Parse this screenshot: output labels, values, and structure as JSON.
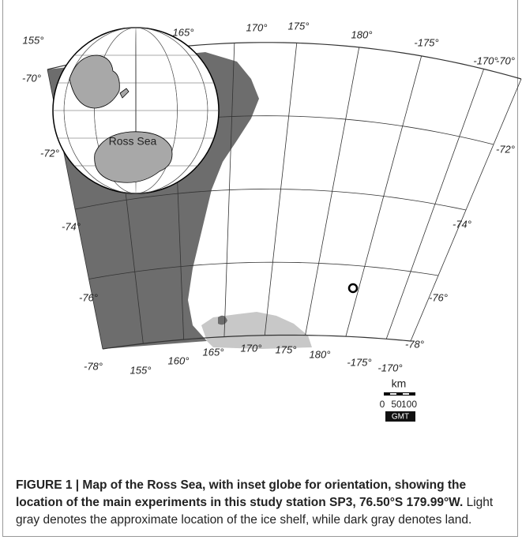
{
  "map": {
    "latitude_labels_left": [
      "-70°",
      "-72°",
      "-74°",
      "-76°",
      "-78°"
    ],
    "latitude_labels_right": [
      "-70°",
      "-72°",
      "-74°",
      "-76°",
      "-78°"
    ],
    "longitude_labels_top": [
      "155°",
      "165°",
      "170°",
      "175°",
      "180°",
      "-175°",
      "-170°"
    ],
    "longitude_labels_bottom": [
      "155°",
      "160°",
      "165°",
      "170°",
      "175°",
      "180°",
      "-175°",
      "-170°"
    ],
    "inset_label": "Ross Sea",
    "scale": {
      "unit": "km",
      "ticks": [
        "0",
        "50",
        "100"
      ],
      "credit": "GMT"
    }
  },
  "caption": {
    "bold": "FIGURE 1 | Map of the Ross Sea, with inset globe for orientation, showing the location of the main experiments in this study station SP3, 76.50°S 179.99°W.",
    "text": "Light gray denotes the approximate location of the ice shelf, while dark gray denotes land."
  }
}
